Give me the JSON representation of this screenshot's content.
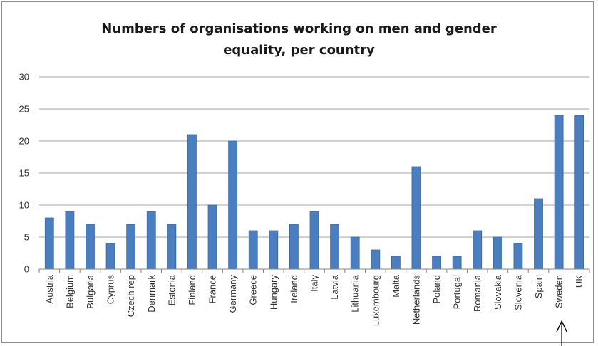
{
  "chart_data": {
    "type": "bar",
    "title_lines": [
      "Numbers of organisations working on men and gender",
      "equality, per country"
    ],
    "categories": [
      "Austria",
      "Belgium",
      "Bulgaria",
      "Cyprus",
      "Czech rep",
      "Denmark",
      "Estonia",
      "Finland",
      "France",
      "Germany",
      "Greece",
      "Hungary",
      "Ireland",
      "Italy",
      "Latvia",
      "Lithuania",
      "Luxembourg",
      "Malta",
      "Netherlands",
      "Poland",
      "Portugal",
      "Romania",
      "Slovakia",
      "Slovenia",
      "Spain",
      "Sweden",
      "UK"
    ],
    "series": [
      {
        "values": [
          8,
          9,
          7,
          4,
          7,
          9,
          7,
          21,
          10,
          20,
          6,
          6,
          7,
          9,
          7,
          5,
          3,
          2,
          16,
          2,
          2,
          6,
          5,
          4,
          11,
          24,
          24
        ]
      }
    ],
    "ylim": [
      0,
      30
    ],
    "yticks": [
      0,
      5,
      10,
      15,
      20,
      25,
      30
    ],
    "xlabel": "",
    "ylabel": "",
    "grid": true,
    "legend": "none",
    "colors": {
      "bar": "#4a7ebf",
      "bar_edge": "#3a66a3",
      "grid": "#a6a6a6",
      "axis": "#868686"
    },
    "annotation": {
      "type": "arrow",
      "points_to": "Sweden"
    }
  }
}
